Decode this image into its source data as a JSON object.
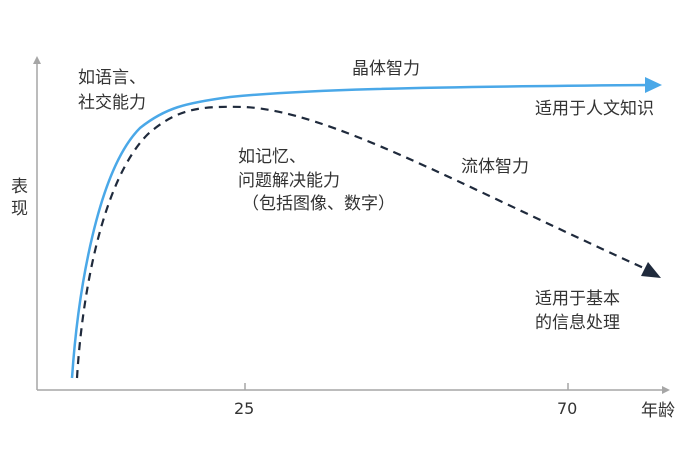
{
  "axes": {
    "y_label_line1": "表",
    "y_label_line2": "现",
    "x_label": "年龄",
    "x_ticks": [
      "25",
      "70"
    ]
  },
  "crystallized": {
    "name": "晶体智力",
    "examples_line1": "如语言、",
    "examples_line2": "社交能力",
    "applies_to": "适用于人文知识",
    "color": "#4aa8e8"
  },
  "fluid": {
    "name": "流体智力",
    "examples_line1": "如记忆、",
    "examples_line2": "问题解决能力",
    "examples_line3": "（包括图像、数字）",
    "applies_to_line1": "适用于基本",
    "applies_to_line2": "的信息处理",
    "color": "#1f2a3c"
  },
  "axis_color": "#a6a6a6"
}
